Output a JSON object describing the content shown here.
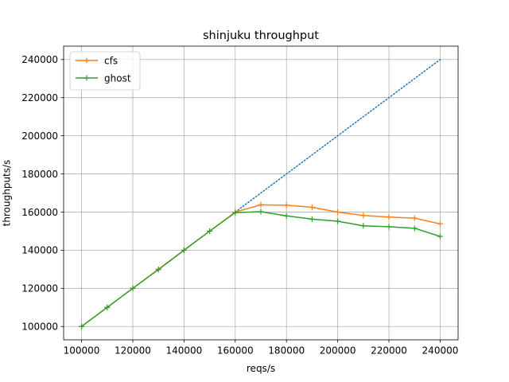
{
  "chart_data": {
    "type": "line",
    "title": "shinjuku throughput",
    "xlabel": "reqs/s",
    "ylabel": "throughputs/s",
    "xlim": [
      93000,
      247000
    ],
    "ylim": [
      93000,
      247000
    ],
    "x_ticks": [
      100000,
      120000,
      140000,
      160000,
      180000,
      200000,
      220000,
      240000
    ],
    "y_ticks": [
      100000,
      120000,
      140000,
      160000,
      180000,
      200000,
      220000,
      240000
    ],
    "grid": true,
    "legend_position": "top-left",
    "x": [
      100000,
      110000,
      120000,
      130000,
      140000,
      150000,
      160000,
      170000,
      180000,
      190000,
      200000,
      210000,
      220000,
      230000,
      240000
    ],
    "series": [
      {
        "name": "",
        "style": "dotted",
        "color": "#1f77b4",
        "marker": "none",
        "x": [
          160000,
          240000
        ],
        "values": [
          160000,
          240000
        ]
      },
      {
        "name": "cfs",
        "style": "solid",
        "color": "#ff7f0e",
        "marker": "plus",
        "values": [
          100000,
          110000,
          120000,
          130000,
          140000,
          150000,
          160000,
          163800,
          163600,
          162500,
          160000,
          158200,
          157400,
          156800,
          153800
        ]
      },
      {
        "name": "ghost",
        "style": "solid",
        "color": "#2ca02c",
        "marker": "plus",
        "values": [
          100000,
          110000,
          120000,
          129800,
          140000,
          150000,
          159700,
          160200,
          158000,
          156300,
          155200,
          152800,
          152300,
          151500,
          147200
        ]
      }
    ]
  }
}
